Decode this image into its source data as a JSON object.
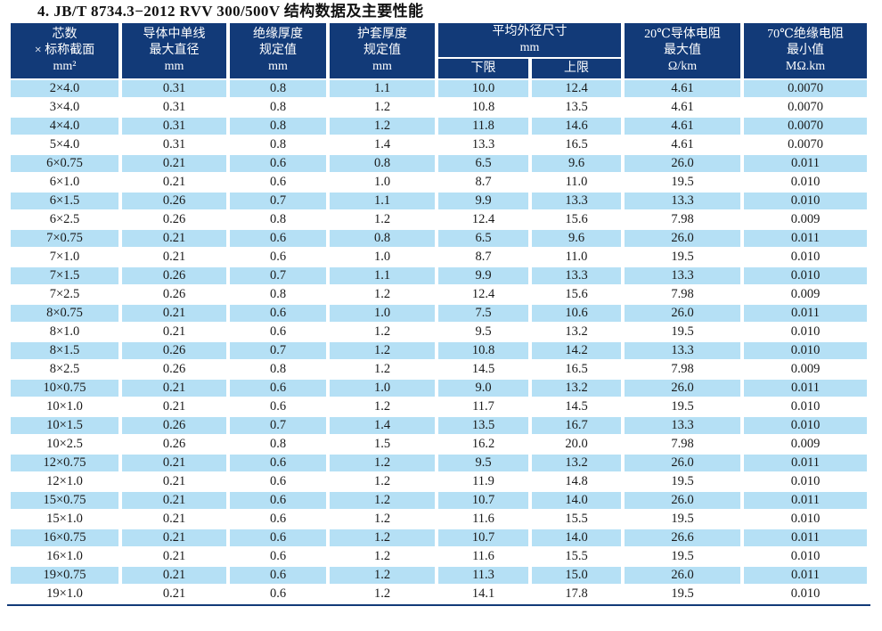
{
  "title": "4. JB/T 8734.3−2012 RVV 300/500V 结构数据及主要性能",
  "colors": {
    "header_bg": "#123a78",
    "row_alt_bg": "#b5e0f5",
    "row_bg": "#ffffff",
    "header_text": "#ffffff",
    "body_text": "#1a1a1a",
    "bottom_rule": "#123a78"
  },
  "table": {
    "header": {
      "cores_section": {
        "l1": "芯数",
        "l2": "× 标称截面",
        "l3": "mm²"
      },
      "conductor_wire_max_dia": {
        "l1": "导体中单线",
        "l2": "最大直径",
        "l3": "mm"
      },
      "insulation_thickness": {
        "l1": "绝缘厚度",
        "l2": "规定值",
        "l3": "mm"
      },
      "sheath_thickness": {
        "l1": "护套厚度",
        "l2": "规定值",
        "l3": "mm"
      },
      "mean_od": {
        "l1": "平均外径尺寸",
        "l2": "mm",
        "lower": "下限",
        "upper": "上限"
      },
      "conductor_resistance_20c": {
        "l1": "20℃导体电阻",
        "l2": "最大值",
        "l3": "Ω/km"
      },
      "insulation_resistance_70c": {
        "l1": "70℃绝缘电阻",
        "l2": "最小值",
        "l3": "MΩ.km"
      }
    },
    "rows": [
      [
        "2×4.0",
        "0.31",
        "0.8",
        "1.1",
        "10.0",
        "12.4",
        "4.61",
        "0.0070"
      ],
      [
        "3×4.0",
        "0.31",
        "0.8",
        "1.2",
        "10.8",
        "13.5",
        "4.61",
        "0.0070"
      ],
      [
        "4×4.0",
        "0.31",
        "0.8",
        "1.2",
        "11.8",
        "14.6",
        "4.61",
        "0.0070"
      ],
      [
        "5×4.0",
        "0.31",
        "0.8",
        "1.4",
        "13.3",
        "16.5",
        "4.61",
        "0.0070"
      ],
      [
        "6×0.75",
        "0.21",
        "0.6",
        "0.8",
        "6.5",
        "9.6",
        "26.0",
        "0.011"
      ],
      [
        "6×1.0",
        "0.21",
        "0.6",
        "1.0",
        "8.7",
        "11.0",
        "19.5",
        "0.010"
      ],
      [
        "6×1.5",
        "0.26",
        "0.7",
        "1.1",
        "9.9",
        "13.3",
        "13.3",
        "0.010"
      ],
      [
        "6×2.5",
        "0.26",
        "0.8",
        "1.2",
        "12.4",
        "15.6",
        "7.98",
        "0.009"
      ],
      [
        "7×0.75",
        "0.21",
        "0.6",
        "0.8",
        "6.5",
        "9.6",
        "26.0",
        "0.011"
      ],
      [
        "7×1.0",
        "0.21",
        "0.6",
        "1.0",
        "8.7",
        "11.0",
        "19.5",
        "0.010"
      ],
      [
        "7×1.5",
        "0.26",
        "0.7",
        "1.1",
        "9.9",
        "13.3",
        "13.3",
        "0.010"
      ],
      [
        "7×2.5",
        "0.26",
        "0.8",
        "1.2",
        "12.4",
        "15.6",
        "7.98",
        "0.009"
      ],
      [
        "8×0.75",
        "0.21",
        "0.6",
        "1.0",
        "7.5",
        "10.6",
        "26.0",
        "0.011"
      ],
      [
        "8×1.0",
        "0.21",
        "0.6",
        "1.2",
        "9.5",
        "13.2",
        "19.5",
        "0.010"
      ],
      [
        "8×1.5",
        "0.26",
        "0.7",
        "1.2",
        "10.8",
        "14.2",
        "13.3",
        "0.010"
      ],
      [
        "8×2.5",
        "0.26",
        "0.8",
        "1.2",
        "14.5",
        "16.5",
        "7.98",
        "0.009"
      ],
      [
        "10×0.75",
        "0.21",
        "0.6",
        "1.0",
        "9.0",
        "13.2",
        "26.0",
        "0.011"
      ],
      [
        "10×1.0",
        "0.21",
        "0.6",
        "1.2",
        "11.7",
        "14.5",
        "19.5",
        "0.010"
      ],
      [
        "10×1.5",
        "0.26",
        "0.7",
        "1.4",
        "13.5",
        "16.7",
        "13.3",
        "0.010"
      ],
      [
        "10×2.5",
        "0.26",
        "0.8",
        "1.5",
        "16.2",
        "20.0",
        "7.98",
        "0.009"
      ],
      [
        "12×0.75",
        "0.21",
        "0.6",
        "1.2",
        "9.5",
        "13.2",
        "26.0",
        "0.011"
      ],
      [
        "12×1.0",
        "0.21",
        "0.6",
        "1.2",
        "11.9",
        "14.8",
        "19.5",
        "0.010"
      ],
      [
        "15×0.75",
        "0.21",
        "0.6",
        "1.2",
        "10.7",
        "14.0",
        "26.0",
        "0.011"
      ],
      [
        "15×1.0",
        "0.21",
        "0.6",
        "1.2",
        "11.6",
        "15.5",
        "19.5",
        "0.010"
      ],
      [
        "16×0.75",
        "0.21",
        "0.6",
        "1.2",
        "10.7",
        "14.0",
        "26.6",
        "0.011"
      ],
      [
        "16×1.0",
        "0.21",
        "0.6",
        "1.2",
        "11.6",
        "15.5",
        "19.5",
        "0.010"
      ],
      [
        "19×0.75",
        "0.21",
        "0.6",
        "1.2",
        "11.3",
        "15.0",
        "26.0",
        "0.011"
      ],
      [
        "19×1.0",
        "0.21",
        "0.6",
        "1.2",
        "14.1",
        "17.8",
        "19.5",
        "0.010"
      ]
    ]
  }
}
